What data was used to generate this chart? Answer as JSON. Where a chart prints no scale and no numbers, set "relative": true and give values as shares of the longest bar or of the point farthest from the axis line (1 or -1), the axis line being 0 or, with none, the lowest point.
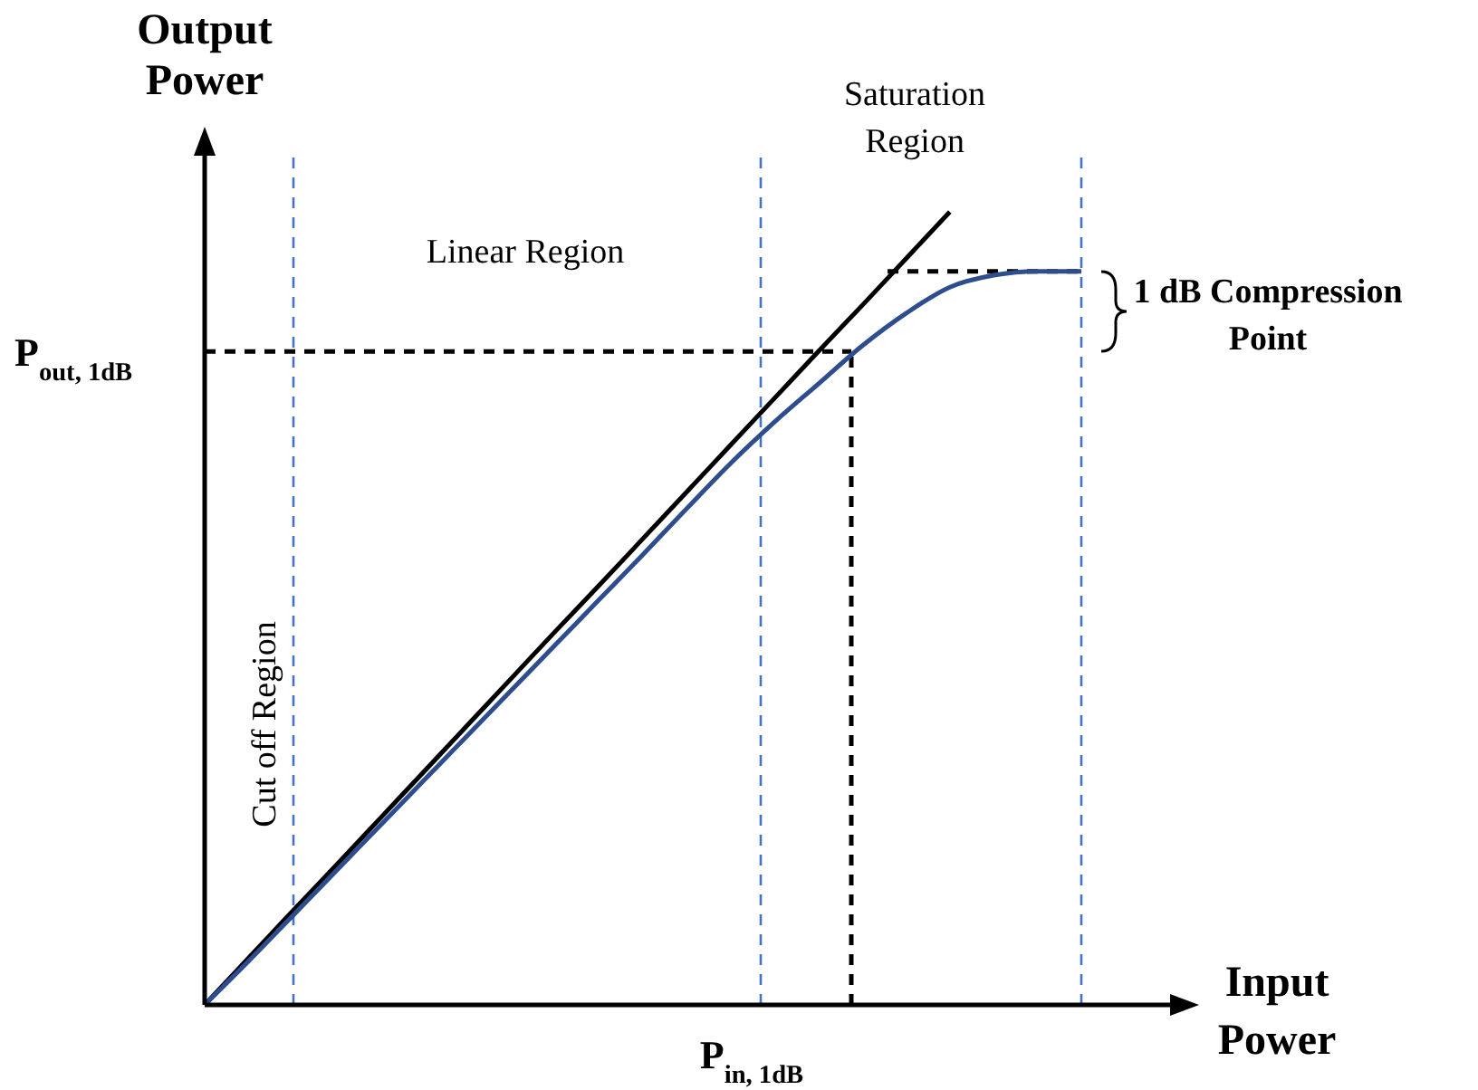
{
  "chart_data": {
    "type": "line",
    "relative": true,
    "xlabel": "Input Power",
    "ylabel": "Output Power",
    "categories": [
      null,
      null,
      null,
      null,
      null,
      null,
      null,
      null,
      null,
      null,
      null,
      null,
      null,
      null,
      null,
      null,
      null,
      null,
      null,
      null,
      null
    ],
    "series": [
      {
        "color": "#000000",
        "values": [
          0,
          0.059,
          0.118,
          0.176,
          0.235,
          0.294,
          0.353,
          0.412,
          0.471,
          0.529,
          0.588,
          0.647,
          0.706,
          0.765,
          0.824,
          0.882,
          0.941,
          1,
          null,
          null,
          null
        ]
      },
      {
        "color": "#2e4d8f",
        "values": [
          0,
          0.055,
          0.112,
          0.169,
          0.226,
          0.283,
          0.34,
          0.397,
          0.454,
          0.511,
          0.568,
          0.626,
          0.683,
          0.735,
          0.783,
          0.831,
          0.872,
          0.905,
          0.92,
          0.925,
          0.925
        ]
      }
    ],
    "ref_lines": [
      {
        "axis": "y",
        "value": 0.824,
        "label": "P$_{out, 1dB}$",
        "color": "#000000",
        "line_style": "dashed"
      },
      {
        "axis": "y",
        "value": 0.925,
        "color": "#000000",
        "line_style": "dashed"
      }
    ],
    "annotations": [
      "Linear Region",
      "Saturation Region",
      "Cut off Region",
      "1 dB Compression Point",
      "P$_{in, 1dB}$"
    ],
    "line_style": "solid"
  }
}
